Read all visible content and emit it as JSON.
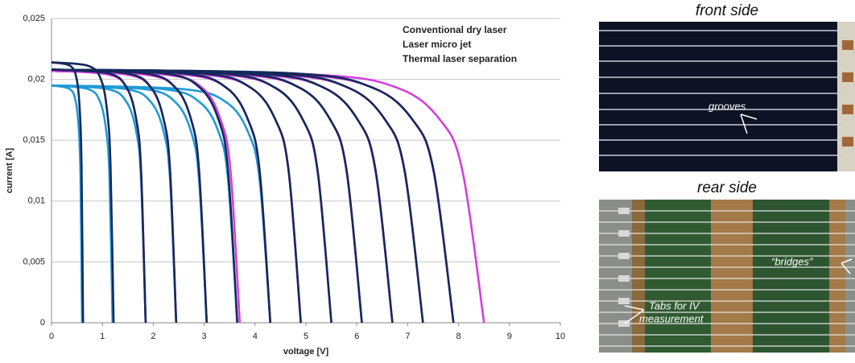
{
  "chart_data": {
    "type": "line",
    "xlabel": "voltage [V]",
    "ylabel": "current [A]",
    "xlim": [
      0,
      10
    ],
    "xticks": [
      0,
      1,
      2,
      3,
      4,
      5,
      6,
      7,
      8,
      9,
      10
    ],
    "ylim": [
      0,
      0.025
    ],
    "yticks": [
      0,
      {
        "value": 0.005,
        "label": "0,005"
      },
      {
        "value": 0.01,
        "label": "0,01"
      },
      {
        "value": 0.015,
        "label": "0,015"
      },
      {
        "value": 0.02,
        "label": "0,02"
      },
      {
        "value": 0.025,
        "label": "0,025"
      }
    ],
    "grid": true,
    "legend": "upper right",
    "series": [
      {
        "name": "Conventional dry laser",
        "color": "#1f9bd6",
        "curves": [
          {
            "x": [
              0,
              0.36,
              0.48,
              0.54,
              0.57,
              0.6
            ],
            "values": [
              0.0195,
              0.0192,
              0.0181,
              0.0156,
              0.0117,
              0
            ]
          },
          {
            "x": [
              0,
              0.72,
              0.96,
              1.08,
              1.14,
              1.2
            ],
            "values": [
              0.0195,
              0.0192,
              0.0181,
              0.0156,
              0.0117,
              0
            ]
          },
          {
            "x": [
              0,
              1.11,
              1.48,
              1.67,
              1.76,
              1.85
            ],
            "values": [
              0.0195,
              0.0192,
              0.0181,
              0.0156,
              0.0117,
              0
            ]
          },
          {
            "x": [
              0,
              1.47,
              1.96,
              2.21,
              2.33,
              2.45
            ],
            "values": [
              0.0195,
              0.0192,
              0.0181,
              0.0156,
              0.0117,
              0
            ]
          },
          {
            "x": [
              0,
              1.83,
              2.44,
              2.75,
              2.9,
              3.05
            ],
            "values": [
              0.0195,
              0.0192,
              0.0181,
              0.0156,
              0.0117,
              0
            ]
          },
          {
            "x": [
              0,
              2.19,
              2.92,
              3.29,
              3.47,
              3.65
            ],
            "values": [
              0.0195,
              0.0192,
              0.0181,
              0.0156,
              0.0117,
              0
            ]
          },
          {
            "x": [
              0,
              2.58,
              3.44,
              3.87,
              4.09,
              4.3
            ],
            "values": [
              0.0195,
              0.0192,
              0.0181,
              0.0156,
              0.0117,
              0
            ]
          }
        ]
      },
      {
        "name": "Laser micro jet",
        "color": "#d43fe0",
        "curves": [
          {
            "x": [
              0,
              1.11,
              1.48,
              1.67,
              1.76,
              1.85
            ],
            "values": [
              0.0207,
              0.0204,
              0.0193,
              0.0166,
              0.0124,
              0
            ]
          },
          {
            "x": [
              0,
              1.47,
              1.96,
              2.21,
              2.33,
              2.45
            ],
            "values": [
              0.0207,
              0.0204,
              0.0193,
              0.0166,
              0.0124,
              0
            ]
          },
          {
            "x": [
              0,
              1.83,
              2.44,
              2.75,
              2.9,
              3.05
            ],
            "values": [
              0.0207,
              0.0204,
              0.0193,
              0.0166,
              0.0124,
              0
            ]
          },
          {
            "x": [
              0,
              2.22,
              2.96,
              3.33,
              3.52,
              3.7
            ],
            "values": [
              0.0207,
              0.0204,
              0.0193,
              0.0166,
              0.0124,
              0
            ]
          },
          {
            "x": [
              0,
              2.58,
              3.44,
              3.87,
              4.09,
              4.3
            ],
            "values": [
              0.0207,
              0.0204,
              0.0193,
              0.0166,
              0.0124,
              0
            ]
          },
          {
            "x": [
              0,
              2.94,
              3.92,
              4.41,
              4.66,
              4.9
            ],
            "values": [
              0.0207,
              0.0204,
              0.0193,
              0.0166,
              0.0124,
              0
            ]
          },
          {
            "x": [
              0,
              3.3,
              4.4,
              4.95,
              5.23,
              5.5
            ],
            "values": [
              0.0207,
              0.0204,
              0.0193,
              0.0166,
              0.0124,
              0
            ]
          },
          {
            "x": [
              0,
              3.66,
              4.88,
              5.49,
              5.8,
              6.1
            ],
            "values": [
              0.0207,
              0.0204,
              0.0193,
              0.0166,
              0.0124,
              0
            ]
          },
          {
            "x": [
              0,
              4.02,
              5.36,
              6.03,
              6.37,
              6.7
            ],
            "values": [
              0.0207,
              0.0204,
              0.0193,
              0.0166,
              0.0124,
              0
            ]
          },
          {
            "x": [
              0,
              4.38,
              5.84,
              6.57,
              6.94,
              7.3
            ],
            "values": [
              0.0207,
              0.0204,
              0.0193,
              0.0166,
              0.0124,
              0
            ]
          },
          {
            "x": [
              0,
              4.74,
              6.32,
              7.11,
              7.51,
              7.9
            ],
            "values": [
              0.0207,
              0.0204,
              0.0193,
              0.0166,
              0.0124,
              0
            ]
          },
          {
            "x": [
              0,
              5.1,
              6.8,
              7.65,
              8.08,
              8.5
            ],
            "values": [
              0.0207,
              0.0204,
              0.0193,
              0.0166,
              0.0124,
              0
            ]
          }
        ]
      },
      {
        "name": "Thermal laser separation",
        "color": "#13295a",
        "curves": [
          {
            "x": [
              0,
              0.37,
              0.5,
              0.56,
              0.59,
              0.62
            ],
            "values": [
              0.0214,
              0.0211,
              0.0199,
              0.0171,
              0.0128,
              0
            ]
          },
          {
            "x": [
              0,
              0.73,
              0.98,
              1.1,
              1.16,
              1.22
            ],
            "values": [
              0.0214,
              0.0211,
              0.0199,
              0.0171,
              0.0128,
              0
            ]
          },
          {
            "x": [
              0,
              1.11,
              1.48,
              1.67,
              1.76,
              1.85
            ],
            "values": [
              0.0208,
              0.0205,
              0.0193,
              0.0166,
              0.0125,
              0
            ]
          },
          {
            "x": [
              0,
              1.47,
              1.96,
              2.21,
              2.33,
              2.45
            ],
            "values": [
              0.0208,
              0.0205,
              0.0193,
              0.0166,
              0.0125,
              0
            ]
          },
          {
            "x": [
              0,
              1.83,
              2.44,
              2.75,
              2.9,
              3.05
            ],
            "values": [
              0.0208,
              0.0205,
              0.0193,
              0.0166,
              0.0125,
              0
            ]
          },
          {
            "x": [
              0,
              2.19,
              2.92,
              3.29,
              3.47,
              3.65
            ],
            "values": [
              0.0208,
              0.0205,
              0.0193,
              0.0166,
              0.0125,
              0
            ]
          },
          {
            "x": [
              0,
              2.58,
              3.44,
              3.87,
              4.09,
              4.3
            ],
            "values": [
              0.0208,
              0.0205,
              0.0193,
              0.0166,
              0.0125,
              0
            ]
          },
          {
            "x": [
              0,
              2.94,
              3.92,
              4.41,
              4.66,
              4.9
            ],
            "values": [
              0.0208,
              0.0205,
              0.0193,
              0.0166,
              0.0125,
              0
            ]
          },
          {
            "x": [
              0,
              3.3,
              4.4,
              4.95,
              5.23,
              5.5
            ],
            "values": [
              0.0208,
              0.0205,
              0.0193,
              0.0166,
              0.0125,
              0
            ]
          },
          {
            "x": [
              0,
              3.66,
              4.88,
              5.49,
              5.8,
              6.1
            ],
            "values": [
              0.0208,
              0.0205,
              0.0193,
              0.0166,
              0.0125,
              0
            ]
          },
          {
            "x": [
              0,
              4.02,
              5.36,
              6.03,
              6.37,
              6.7
            ],
            "values": [
              0.0208,
              0.0205,
              0.0193,
              0.0166,
              0.0125,
              0
            ]
          },
          {
            "x": [
              0,
              4.38,
              5.84,
              6.57,
              6.94,
              7.3
            ],
            "values": [
              0.0208,
              0.0205,
              0.0193,
              0.0166,
              0.0125,
              0
            ]
          },
          {
            "x": [
              0,
              4.74,
              6.32,
              7.11,
              7.51,
              7.9
            ],
            "values": [
              0.0208,
              0.0205,
              0.0193,
              0.0166,
              0.0125,
              0
            ]
          }
        ]
      }
    ]
  },
  "photos": {
    "front": {
      "title": "front side",
      "label": "grooves"
    },
    "rear": {
      "title": "rear side",
      "tabs": [
        "Tabs for IV",
        "measurement"
      ],
      "bridges": "“bridges”"
    }
  }
}
